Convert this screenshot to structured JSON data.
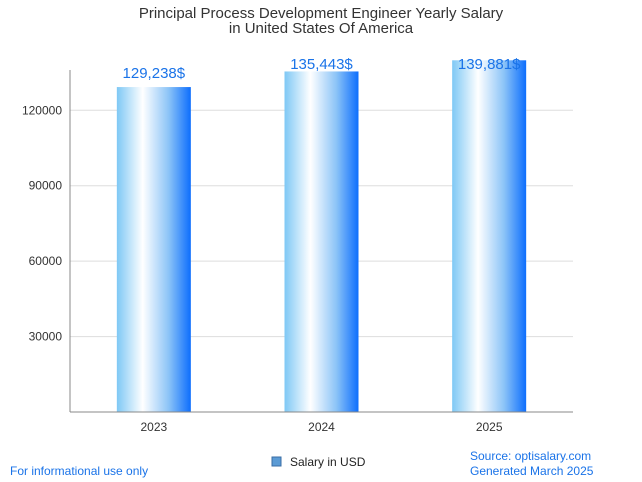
{
  "chart_data": {
    "type": "bar",
    "title_line1": "Principal Process Development Engineer Yearly Salary",
    "title_line2": "in United States Of America",
    "categories": [
      "2023",
      "2024",
      "2025"
    ],
    "series": [
      {
        "name": "Salary in USD",
        "values": [
          129238,
          135443,
          139881
        ]
      }
    ],
    "data_labels": [
      "129,238$",
      "135,443$",
      "139,881$"
    ],
    "y_ticks": [
      30000,
      60000,
      90000,
      120000
    ],
    "ylim": [
      0,
      140000
    ],
    "grid": true,
    "legend": "bottom-center"
  },
  "footer": {
    "left": "For informational use only",
    "source": "Source: optisalary.com",
    "generated": "Generated March 2025"
  },
  "colors": {
    "bar_edge": "#0d6efd",
    "bar_light": "#ffffff",
    "bar_mid": "#7ec8f5",
    "legend_swatch": "#5b9bd5",
    "grid": "#dddddd",
    "axis": "#888888"
  }
}
